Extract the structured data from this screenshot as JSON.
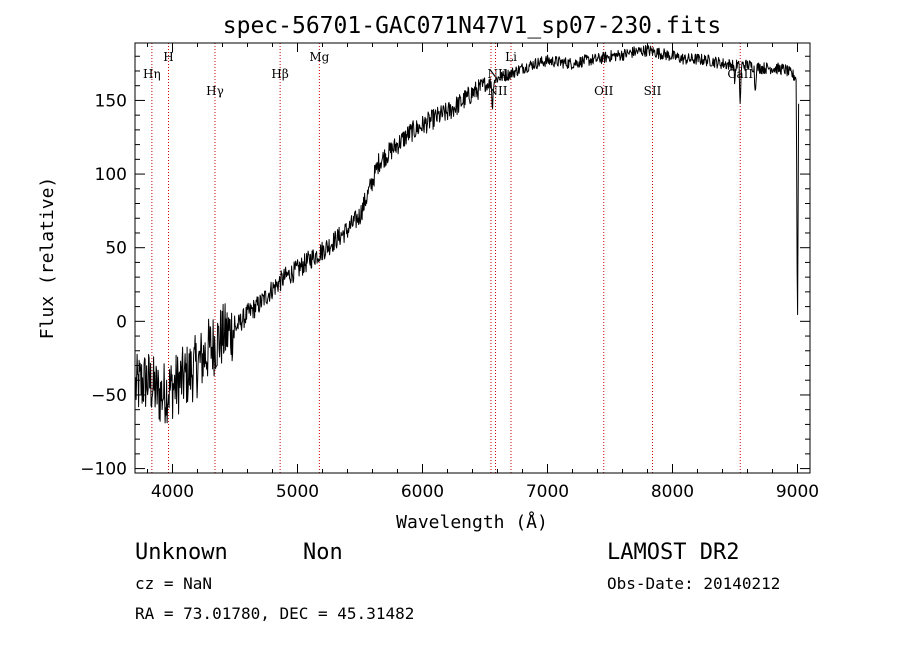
{
  "chart_data": {
    "type": "line",
    "title": "spec-56701-GAC071N47V1_sp07-230.fits",
    "xlabel": "Wavelength (Å)",
    "ylabel": "Flux (relative)",
    "xlim": [
      3700,
      9100
    ],
    "ylim": [
      -103,
      189
    ],
    "x_ticks": [
      4000,
      5000,
      6000,
      7000,
      8000,
      9000
    ],
    "y_ticks": [
      -100,
      -50,
      0,
      50,
      100,
      150
    ],
    "grid": false,
    "line_color": "#000000",
    "marker_color": "#cc0000",
    "spectrum_anchors": {
      "x": [
        3700,
        3800,
        3900,
        4000,
        4100,
        4200,
        4300,
        4400,
        4500,
        4600,
        4700,
        4800,
        4900,
        5000,
        5100,
        5200,
        5300,
        5400,
        5500,
        5600,
        5650,
        5700,
        5800,
        5900,
        6000,
        6100,
        6200,
        6300,
        6400,
        6500,
        6600,
        6700,
        6800,
        6900,
        7000,
        7100,
        7200,
        7300,
        7400,
        7500,
        7600,
        7700,
        7800,
        7900,
        8000,
        8100,
        8200,
        8300,
        8400,
        8500,
        8600,
        8700,
        8800,
        8900,
        9000
      ],
      "y": [
        -45,
        -40,
        -50,
        -45,
        -38,
        -30,
        -18,
        -10,
        -5,
        5,
        12,
        22,
        30,
        35,
        42,
        48,
        55,
        62,
        72,
        95,
        108,
        112,
        120,
        128,
        133,
        138,
        142,
        148,
        155,
        160,
        165,
        168,
        172,
        175,
        177,
        176,
        175,
        177,
        178,
        180,
        181,
        183,
        184,
        182,
        180,
        178,
        178,
        177,
        175,
        174,
        174,
        172,
        172,
        171,
        165
      ]
    },
    "spectrum_features": [
      {
        "x": 6560,
        "depth": 20
      },
      {
        "x": 8498,
        "depth": 12
      },
      {
        "x": 8542,
        "depth": 28
      },
      {
        "x": 8662,
        "depth": 18
      },
      {
        "x": 9000,
        "depth": 180
      }
    ],
    "line_markers": [
      {
        "label": "Hη",
        "x": 3835,
        "label_x": 3835,
        "row": 2
      },
      {
        "label": "H",
        "x": 3968,
        "label_x": 3968,
        "row": 1
      },
      {
        "label": "Hγ",
        "x": 4340,
        "label_x": 4340,
        "row": 3
      },
      {
        "label": "Hβ",
        "x": 4861,
        "label_x": 4861,
        "row": 2
      },
      {
        "label": "Mg",
        "x": 5175,
        "label_x": 5175,
        "row": 1
      },
      {
        "label": "NII",
        "x": 6548,
        "label_x": 6600,
        "row": 2
      },
      {
        "label": "NII",
        "x": 6584,
        "label_x": 6600,
        "row": 3
      },
      {
        "label": "Li",
        "x": 6708,
        "label_x": 6708,
        "row": 1
      },
      {
        "label": "OII",
        "x": 7450,
        "label_x": 7450,
        "row": 3
      },
      {
        "label": "SII",
        "x": 7840,
        "label_x": 7840,
        "row": 3
      },
      {
        "label": "CaII",
        "x": 8542,
        "label_x": 8542,
        "row": 2
      }
    ]
  },
  "footer": {
    "object_class": "Unknown",
    "subclass": "Non",
    "survey": "LAMOST DR2",
    "redshift": "cz = NaN",
    "obs_date": "Obs-Date: 20140212",
    "coords": "RA =  73.01780, DEC =  45.31482"
  }
}
